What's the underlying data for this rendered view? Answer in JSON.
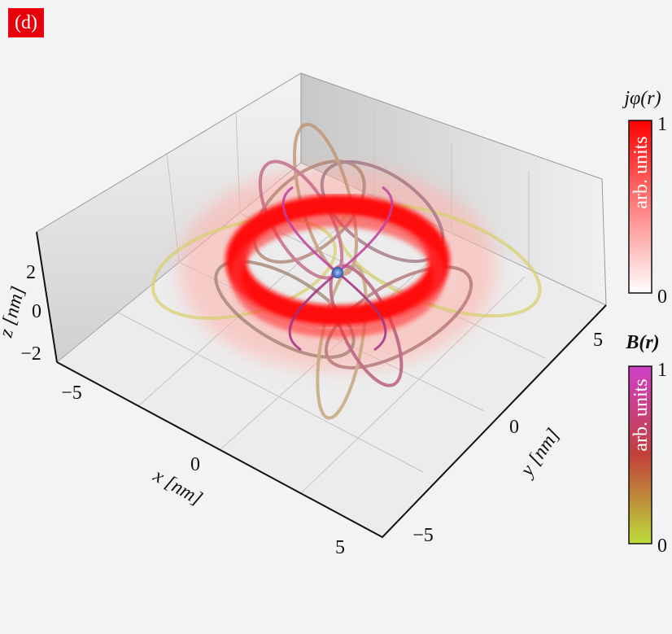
{
  "panel_label": "(d)",
  "axes": {
    "x": {
      "label": "x [nm]",
      "ticks": [
        "−5",
        "0",
        "5"
      ]
    },
    "y": {
      "label": "y [nm]",
      "ticks": [
        "−5",
        "0",
        "5"
      ]
    },
    "z": {
      "label": "z [nm]",
      "ticks": [
        "2",
        "0",
        "−2"
      ]
    }
  },
  "colorbars": [
    {
      "title": "jφ(r)",
      "unit": "arb. units",
      "ticks": [
        "1",
        "0"
      ]
    },
    {
      "title": "B(r)",
      "unit": "arb. units",
      "ticks": [
        "1",
        "0"
      ]
    }
  ]
}
